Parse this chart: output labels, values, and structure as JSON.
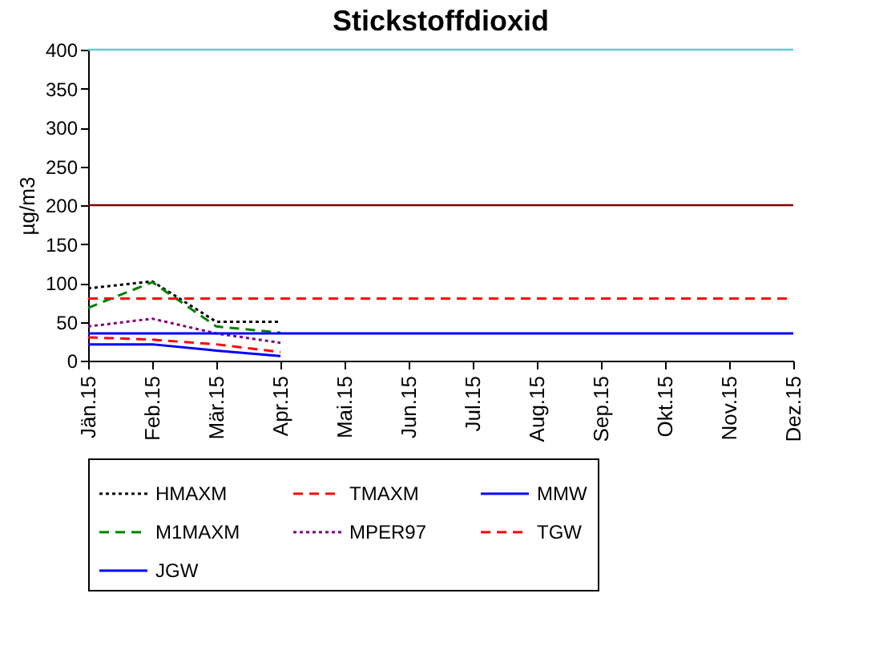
{
  "chart_data": {
    "type": "line",
    "title": "Stickstoffdioxid",
    "ylabel": "µg/m3",
    "categories": [
      "Jän.15",
      "Feb.15",
      "Mär.15",
      "Apr.15",
      "Mai.15",
      "Jun.15",
      "Jul.15",
      "Aug.15",
      "Sep.15",
      "Okt.15",
      "Nov.15",
      "Dez.15"
    ],
    "ylim": [
      0,
      400
    ],
    "yticks": [
      0,
      50,
      100,
      150,
      200,
      250,
      300,
      350,
      400
    ],
    "grid": false,
    "legend": "bottom",
    "series": [
      {
        "name": "HMAXM",
        "color": "#000000",
        "line_style": "dotted",
        "values": [
          93,
          102,
          50,
          50,
          null,
          null,
          null,
          null,
          null,
          null,
          null,
          null
        ]
      },
      {
        "name": "TMAXM",
        "color": "#ff0000",
        "line_style": "dashed",
        "values": [
          30,
          27,
          21,
          11,
          null,
          null,
          null,
          null,
          null,
          null,
          null,
          null
        ]
      },
      {
        "name": "MMW",
        "color": "#0000ff",
        "line_style": "solid",
        "values": [
          21,
          21,
          13,
          6,
          null,
          null,
          null,
          null,
          null,
          null,
          null,
          null
        ]
      },
      {
        "name": "M1MAXM",
        "color": "#008000",
        "line_style": "dashed",
        "values": [
          68,
          101,
          44,
          36,
          null,
          null,
          null,
          null,
          null,
          null,
          null,
          null
        ]
      },
      {
        "name": "MPER97",
        "color": "#800080",
        "line_style": "dotted",
        "values": [
          44,
          54,
          35,
          23,
          null,
          null,
          null,
          null,
          null,
          null,
          null,
          null
        ]
      },
      {
        "name": "TGW",
        "color": "#ff0000",
        "line_style": "dashed",
        "values": [
          80,
          80,
          80,
          80,
          80,
          80,
          80,
          80,
          80,
          80,
          80,
          80
        ]
      },
      {
        "name": "JGW",
        "color": "#0000ff",
        "line_style": "solid",
        "values": [
          35,
          35,
          35,
          35,
          35,
          35,
          35,
          35,
          35,
          35,
          35,
          35
        ]
      }
    ],
    "ref_lines": [
      {
        "axis": "y",
        "value": 200,
        "color": "#800000"
      },
      {
        "axis": "y",
        "value": 400,
        "color": "#66cccc"
      }
    ]
  }
}
